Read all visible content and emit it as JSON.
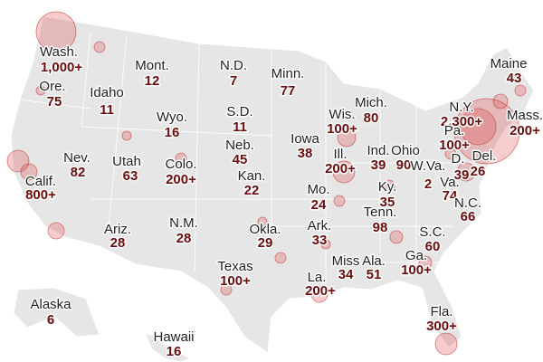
{
  "states": [
    {
      "name": "Wash.",
      "count": "1,000+"
    },
    {
      "name": "Ore.",
      "count": "75"
    },
    {
      "name": "Mont.",
      "count": "12"
    },
    {
      "name": "Idaho",
      "count": "11"
    },
    {
      "name": "N.D.",
      "count": "7"
    },
    {
      "name": "Minn.",
      "count": "77"
    },
    {
      "name": "Wyo.",
      "count": "16"
    },
    {
      "name": "S.D.",
      "count": "11"
    },
    {
      "name": "Wis.",
      "count": "100+"
    },
    {
      "name": "Mich.",
      "count": "80"
    },
    {
      "name": "Maine",
      "count": "43"
    },
    {
      "name": "N.Y.",
      "count": "2,300+"
    },
    {
      "name": "Mass.",
      "count": "200+"
    },
    {
      "name": "Iowa",
      "count": "38"
    },
    {
      "name": "Neb.",
      "count": "45"
    },
    {
      "name": "Ill.",
      "count": "200+"
    },
    {
      "name": "Ind.",
      "count": "39"
    },
    {
      "name": "Ohio",
      "count": "90"
    },
    {
      "name": "Pa.",
      "count": "100+"
    },
    {
      "name": "W.Va.",
      "count": "2"
    },
    {
      "name": "D.",
      "count": "39"
    },
    {
      "name": "Del.",
      "count": "26"
    },
    {
      "name": "Nev.",
      "count": "82"
    },
    {
      "name": "Utah",
      "count": "63"
    },
    {
      "name": "Colo.",
      "count": "200+"
    },
    {
      "name": "Kan.",
      "count": "22"
    },
    {
      "name": "Calif.",
      "count": "800+"
    },
    {
      "name": "Mo.",
      "count": "24"
    },
    {
      "name": "Ky.",
      "count": "35"
    },
    {
      "name": "Va.",
      "count": "74"
    },
    {
      "name": "N.C.",
      "count": "66"
    },
    {
      "name": "Tenn.",
      "count": "98"
    },
    {
      "name": "Ariz.",
      "count": "28"
    },
    {
      "name": "N.M.",
      "count": "28"
    },
    {
      "name": "Okla.",
      "count": "29"
    },
    {
      "name": "Ark.",
      "count": "33"
    },
    {
      "name": "S.C.",
      "count": "60"
    },
    {
      "name": "Ga.",
      "count": "100+"
    },
    {
      "name": "Texas",
      "count": "100+"
    },
    {
      "name": "Miss",
      "count": "34"
    },
    {
      "name": "Ala.",
      "count": "51"
    },
    {
      "name": "La.",
      "count": "200+"
    },
    {
      "name": "Fla.",
      "count": "300+"
    },
    {
      "name": "Alaska",
      "count": "6"
    },
    {
      "name": "Hawaii",
      "count": "16"
    }
  ]
}
